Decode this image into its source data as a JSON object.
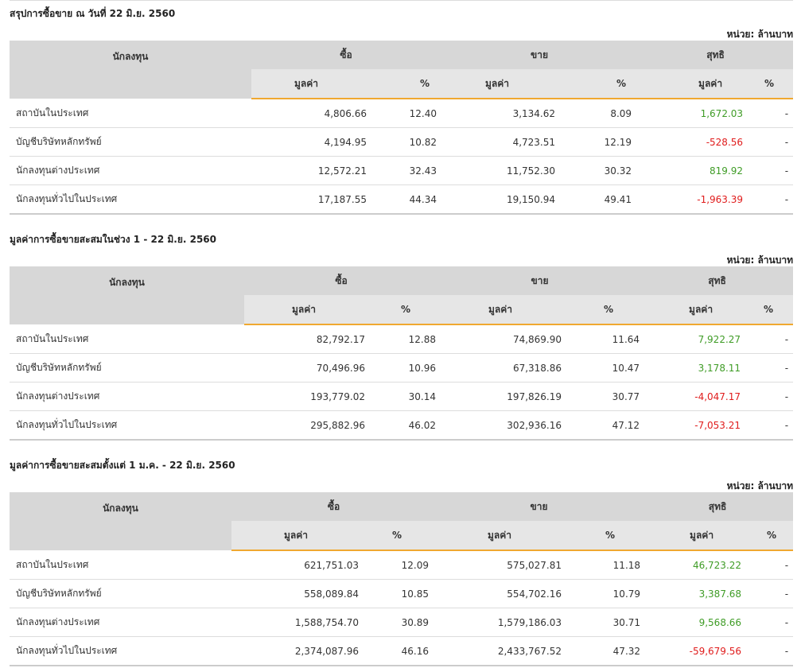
{
  "unit_label": "หน่วย: ล้านบาท",
  "columns": {
    "investor": "นักลงทุน",
    "buy": "ซื้อ",
    "sell": "ขาย",
    "net": "สุทธิ",
    "value": "มูลค่า",
    "percent": "%"
  },
  "sections": [
    {
      "title": "สรุปการซื้อขาย ณ วันที่ 22 มิ.ย. 2560",
      "rows": [
        {
          "name": "สถาบันในประเทศ",
          "buy_value": "4,806.66",
          "buy_pct": "12.40",
          "sell_value": "3,134.62",
          "sell_pct": "8.09",
          "net_value": "1,672.03",
          "net_sign": "pos",
          "net_pct": "-"
        },
        {
          "name": "บัญชีบริษัทหลักทรัพย์",
          "buy_value": "4,194.95",
          "buy_pct": "10.82",
          "sell_value": "4,723.51",
          "sell_pct": "12.19",
          "net_value": "-528.56",
          "net_sign": "neg",
          "net_pct": "-"
        },
        {
          "name": "นักลงทุนต่างประเทศ",
          "buy_value": "12,572.21",
          "buy_pct": "32.43",
          "sell_value": "11,752.30",
          "sell_pct": "30.32",
          "net_value": "819.92",
          "net_sign": "pos",
          "net_pct": "-"
        },
        {
          "name": "นักลงทุนทั่วไปในประเทศ",
          "buy_value": "17,187.55",
          "buy_pct": "44.34",
          "sell_value": "19,150.94",
          "sell_pct": "49.41",
          "net_value": "-1,963.39",
          "net_sign": "neg",
          "net_pct": "-"
        }
      ]
    },
    {
      "title": "มูลค่าการซื้อขายสะสมในช่วง 1 - 22 มิ.ย. 2560",
      "rows": [
        {
          "name": "สถาบันในประเทศ",
          "buy_value": "82,792.17",
          "buy_pct": "12.88",
          "sell_value": "74,869.90",
          "sell_pct": "11.64",
          "net_value": "7,922.27",
          "net_sign": "pos",
          "net_pct": "-"
        },
        {
          "name": "บัญชีบริษัทหลักทรัพย์",
          "buy_value": "70,496.96",
          "buy_pct": "10.96",
          "sell_value": "67,318.86",
          "sell_pct": "10.47",
          "net_value": "3,178.11",
          "net_sign": "pos",
          "net_pct": "-"
        },
        {
          "name": "นักลงทุนต่างประเทศ",
          "buy_value": "193,779.02",
          "buy_pct": "30.14",
          "sell_value": "197,826.19",
          "sell_pct": "30.77",
          "net_value": "-4,047.17",
          "net_sign": "neg",
          "net_pct": "-"
        },
        {
          "name": "นักลงทุนทั่วไปในประเทศ",
          "buy_value": "295,882.96",
          "buy_pct": "46.02",
          "sell_value": "302,936.16",
          "sell_pct": "47.12",
          "net_value": "-7,053.21",
          "net_sign": "neg",
          "net_pct": "-"
        }
      ]
    },
    {
      "title": "มูลค่าการซื้อขายสะสมตั้งแต่ 1 ม.ค. - 22 มิ.ย. 2560",
      "rows": [
        {
          "name": "สถาบันในประเทศ",
          "buy_value": "621,751.03",
          "buy_pct": "12.09",
          "sell_value": "575,027.81",
          "sell_pct": "11.18",
          "net_value": "46,723.22",
          "net_sign": "pos",
          "net_pct": "-"
        },
        {
          "name": "บัญชีบริษัทหลักทรัพย์",
          "buy_value": "558,089.84",
          "buy_pct": "10.85",
          "sell_value": "554,702.16",
          "sell_pct": "10.79",
          "net_value": "3,387.68",
          "net_sign": "pos",
          "net_pct": "-"
        },
        {
          "name": "นักลงทุนต่างประเทศ",
          "buy_value": "1,588,754.70",
          "buy_pct": "30.89",
          "sell_value": "1,579,186.03",
          "sell_pct": "30.71",
          "net_value": "9,568.66",
          "net_sign": "pos",
          "net_pct": "-"
        },
        {
          "name": "นักลงทุนทั่วไปในประเทศ",
          "buy_value": "2,374,087.96",
          "buy_pct": "46.16",
          "sell_value": "2,433,767.52",
          "sell_pct": "47.32",
          "net_value": "-59,679.56",
          "net_sign": "neg",
          "net_pct": "-"
        }
      ]
    }
  ],
  "colors": {
    "header_bg": "#d7d7d7",
    "subheader_bg": "#e6e6e6",
    "accent_underline": "#f0a830",
    "positive": "#3f9c26",
    "negative": "#e01c1c"
  }
}
